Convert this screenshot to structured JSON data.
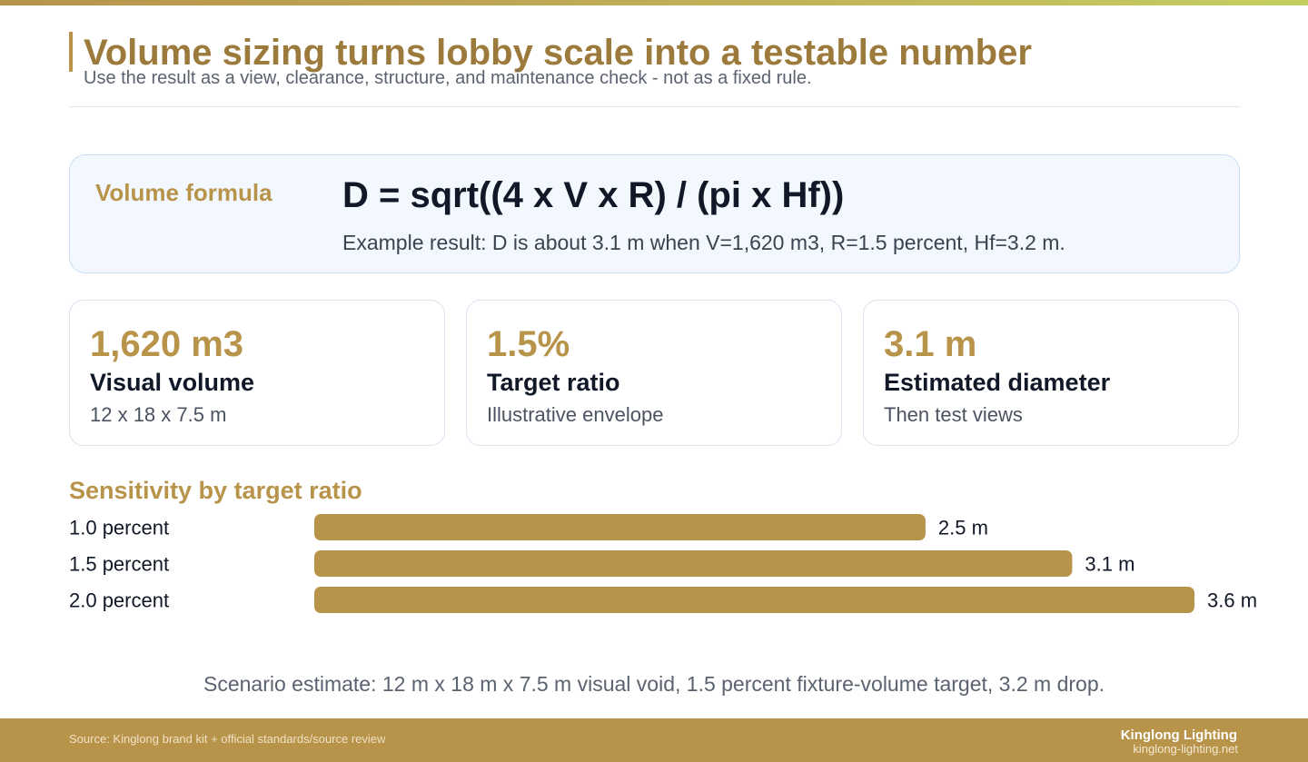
{
  "header": {
    "title": "Volume sizing turns lobby scale into a testable number",
    "subtitle": "Use the result as a view, clearance, structure, and maintenance check - not as a fixed rule."
  },
  "formula": {
    "label": "Volume formula",
    "equation": "D = sqrt((4 x V x R) / (pi x Hf))",
    "example": "Example result: D is about 3.1 m when V=1,620 m3, R=1.5 percent, Hf=3.2 m."
  },
  "stats": [
    {
      "value": "1,620 m3",
      "label": "Visual volume",
      "detail": "12 x 18 x 7.5 m"
    },
    {
      "value": "1.5%",
      "label": "Target ratio",
      "detail": "Illustrative envelope"
    },
    {
      "value": "3.1 m",
      "label": "Estimated diameter",
      "detail": "Then test views"
    }
  ],
  "sensitivity": {
    "title": "Sensitivity by target ratio"
  },
  "chart_data": {
    "type": "bar",
    "orientation": "horizontal",
    "title": "Sensitivity by target ratio",
    "categories": [
      "1.0 percent",
      "1.5 percent",
      "2.0 percent"
    ],
    "values": [
      2.5,
      3.1,
      3.6
    ],
    "value_labels": [
      "2.5 m",
      "3.1 m",
      "3.6 m"
    ],
    "unit": "m",
    "xlim": [
      0,
      3.6
    ],
    "grid": false,
    "legend": "none",
    "bar_color": "#b8934a"
  },
  "scenario": "Scenario estimate: 12 m x 18 m x 7.5 m visual void, 1.5 percent fixture-volume target, 3.2 m drop.",
  "footer": {
    "source": "Source: Kinglong brand kit + official standards/source review",
    "brand": "Kinglong Lighting",
    "url": "kinglong-lighting.net"
  },
  "colors": {
    "accent": "#b8934a",
    "title": "#9c7a3c",
    "formula_bg": "#f3f8fe",
    "formula_border": "#c9def3"
  }
}
